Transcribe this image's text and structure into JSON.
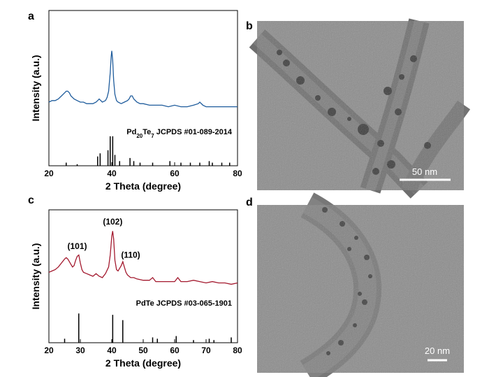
{
  "chart_data": [
    {
      "type": "line",
      "panel_label": "a",
      "xlabel": "2 Theta (degree)",
      "ylabel": "Intensity (a.u.)",
      "xlim": [
        20,
        80
      ],
      "xticks": [
        20,
        40,
        60,
        80
      ],
      "ylim": [
        0,
        100
      ],
      "series": [
        {
          "color": "#1f5c9c",
          "x": [
            20,
            21,
            22,
            23,
            24,
            25,
            25.5,
            26,
            26.5,
            27,
            28,
            29,
            30,
            31,
            32,
            33,
            34,
            35,
            35.5,
            36,
            36.5,
            37,
            38,
            38.5,
            39,
            39.5,
            39.8,
            40,
            40.3,
            40.6,
            41,
            41.5,
            42,
            43,
            44,
            45,
            45.5,
            46,
            46.5,
            47,
            48,
            49,
            50,
            52,
            54,
            56,
            58,
            60,
            62,
            64,
            66,
            67.5,
            68,
            69,
            70,
            72,
            74,
            76,
            78,
            80
          ],
          "values": [
            41,
            42,
            42,
            43,
            45,
            47,
            48,
            48,
            47,
            45,
            43,
            42,
            41,
            41,
            40,
            40,
            40,
            41,
            42,
            43,
            42,
            41,
            42,
            44,
            48,
            60,
            70,
            74,
            68,
            55,
            46,
            42,
            41,
            40,
            41,
            42,
            43,
            45,
            45,
            43,
            41,
            40,
            40,
            39,
            39,
            39,
            38,
            39,
            38,
            38,
            39,
            40,
            41,
            39,
            38,
            38,
            38,
            38,
            38,
            38
          ]
        }
      ],
      "reference": {
        "color": "#000000",
        "x": [
          25.5,
          29,
          35.5,
          36.3,
          38.8,
          39.5,
          40.3,
          41,
          42.5,
          45.8,
          47,
          49,
          53,
          58.5,
          62,
          65,
          68,
          71,
          72,
          75,
          77.5
        ],
        "values": [
          2,
          1,
          6,
          8,
          10,
          19,
          19,
          7,
          3,
          5,
          3,
          2,
          2,
          3,
          2,
          2,
          2,
          3,
          2,
          2,
          2
        ]
      },
      "reference_label": [
        {
          "text": "Pd"
        },
        {
          "text": "20",
          "sub": true
        },
        {
          "text": "Te"
        },
        {
          "text": "7",
          "sub": true
        },
        {
          "text": " JCPDS #01-089-2014"
        }
      ]
    },
    {
      "type": "line",
      "panel_label": "c",
      "xlabel": "2 Theta (degree)",
      "ylabel": "Intensity (a.u.)",
      "xlim": [
        20,
        80
      ],
      "xticks": [
        20,
        30,
        40,
        50,
        60,
        70,
        80
      ],
      "ylim": [
        0,
        100
      ],
      "series": [
        {
          "color": "#a3192e",
          "x": [
            20,
            21,
            22,
            23,
            24,
            25,
            25.5,
            26,
            26.5,
            27,
            27.5,
            28,
            28.5,
            29,
            29.5,
            30,
            30.5,
            31,
            32,
            33,
            34,
            35,
            36,
            37,
            38,
            39,
            39.5,
            40,
            40.3,
            40.6,
            41,
            41.5,
            42,
            42.5,
            43,
            43.5,
            44,
            44.5,
            45,
            46,
            47,
            48,
            50,
            52,
            53,
            54,
            56,
            58,
            60,
            61,
            62,
            64,
            66,
            68,
            70,
            72,
            74,
            76,
            78,
            80
          ],
          "values": [
            53,
            54,
            55,
            57,
            60,
            63,
            64,
            63,
            61,
            59,
            57,
            58,
            62,
            65,
            66,
            60,
            55,
            53,
            52,
            51,
            50,
            52,
            50,
            49,
            52,
            57,
            66,
            80,
            84,
            78,
            62,
            55,
            54,
            56,
            58,
            61,
            57,
            53,
            51,
            49,
            49,
            48,
            47,
            47,
            49,
            46,
            46,
            46,
            46,
            49,
            46,
            46,
            47,
            46,
            45,
            46,
            45,
            45,
            44,
            45
          ]
        }
      ],
      "reference": {
        "color": "#000000",
        "x": [
          25,
          29.5,
          40.3,
          43.5,
          53,
          54.5,
          60.5,
          66,
          71,
          72.5,
          78
        ],
        "values": [
          3,
          22,
          21,
          17,
          4,
          3,
          5,
          2,
          3,
          2,
          4
        ]
      },
      "reference_label": [
        {
          "text": "PdTe JCPDS #03-065-1901"
        }
      ],
      "annotations": [
        {
          "text": "(101)",
          "x": 29,
          "y": 70.5
        },
        {
          "text": "(102)",
          "x": 40.3,
          "y": 89
        },
        {
          "text": "(110)",
          "x": 46,
          "y": 64
        }
      ]
    }
  ],
  "images": [
    {
      "panel_label": "b",
      "scale_bar": "50 nm"
    },
    {
      "panel_label": "d",
      "scale_bar": "20 nm"
    }
  ]
}
